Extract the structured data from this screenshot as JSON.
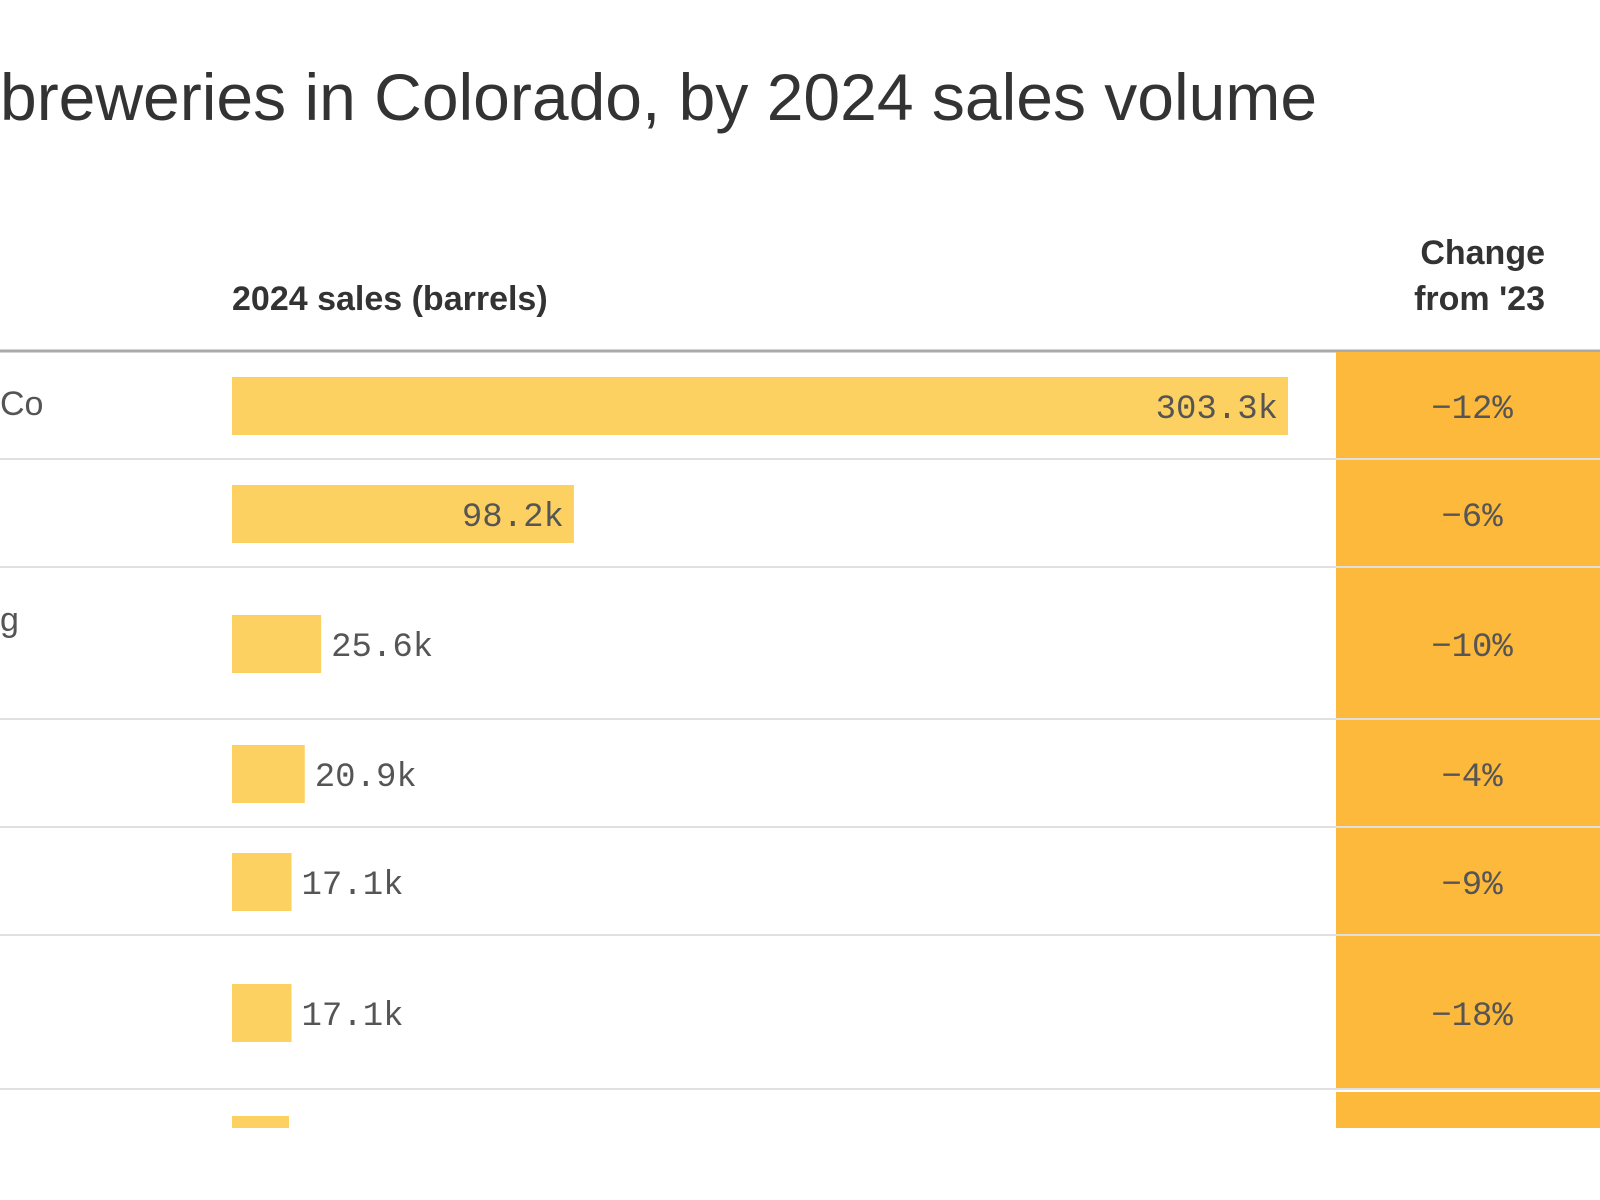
{
  "chart_data": {
    "type": "bar",
    "title": "breweries in Colorado, by 2024 sales volume",
    "value_header": "2024 sales (barrels)",
    "change_header": "Change from '23",
    "categories": [
      "Co",
      null,
      "g",
      null,
      null,
      null
    ],
    "values": [
      303300,
      98200,
      25600,
      20900,
      17100,
      17100
    ],
    "value_labels": [
      "303.3k",
      "98.2k",
      "25.6k",
      "20.9k",
      "17.1k",
      "17.1k"
    ],
    "color": "#fdd161",
    "xlim": [
      0,
      303300
    ],
    "change": {
      "values": [
        -12,
        -6,
        -10,
        -4,
        -9,
        -18
      ],
      "value_labels": [
        "−12%",
        "−6%",
        "−10%",
        "−4%",
        "−9%",
        "−18%"
      ],
      "color": "#fdb93c"
    }
  }
}
